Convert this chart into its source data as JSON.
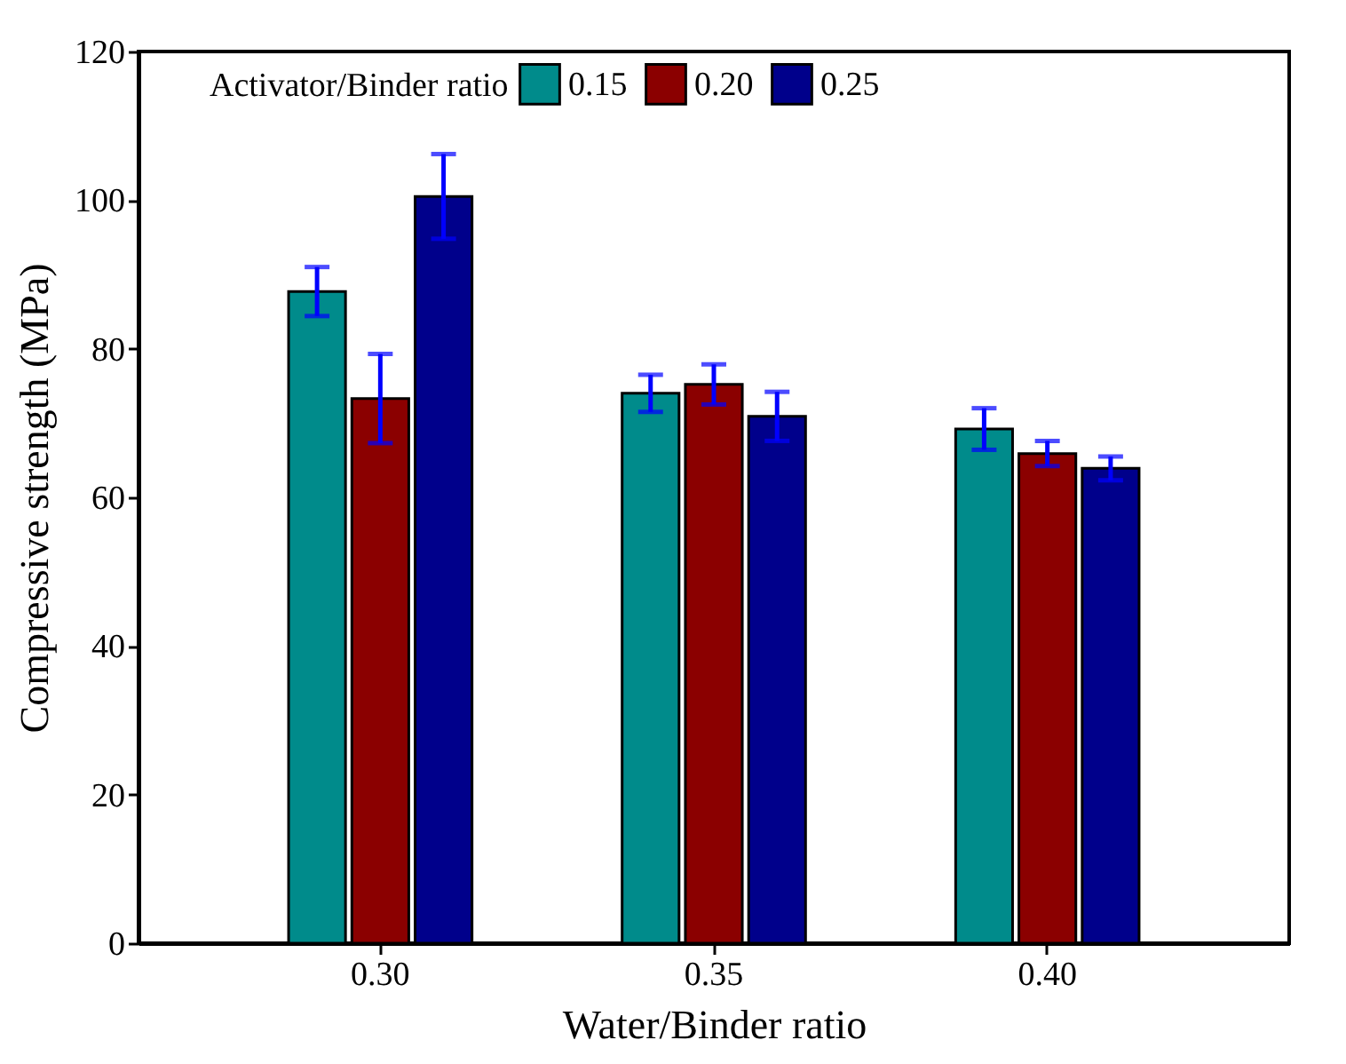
{
  "chart_data": {
    "type": "bar",
    "xlabel": "Water/Binder ratio",
    "ylabel": "Compressive strength (MPa)",
    "legend_title": "Activator/Binder ratio",
    "categories": [
      "0.30",
      "0.35",
      "0.40"
    ],
    "series": [
      {
        "name": "0.15",
        "color": "#008b8b",
        "values": [
          87.7,
          74.0,
          69.2
        ],
        "errors": [
          3.3,
          2.5,
          2.8
        ]
      },
      {
        "name": "0.20",
        "color": "#8b0000",
        "values": [
          73.3,
          75.2,
          65.9
        ],
        "errors": [
          6.0,
          2.7,
          1.7
        ]
      },
      {
        "name": "0.25",
        "color": "#00008b",
        "values": [
          100.5,
          70.9,
          63.9
        ],
        "errors": [
          5.7,
          3.3,
          1.6
        ]
      }
    ],
    "ylim": [
      0,
      120
    ],
    "yticks": [
      0,
      20,
      40,
      60,
      80,
      100,
      120
    ],
    "grid": false,
    "legend": "top"
  }
}
